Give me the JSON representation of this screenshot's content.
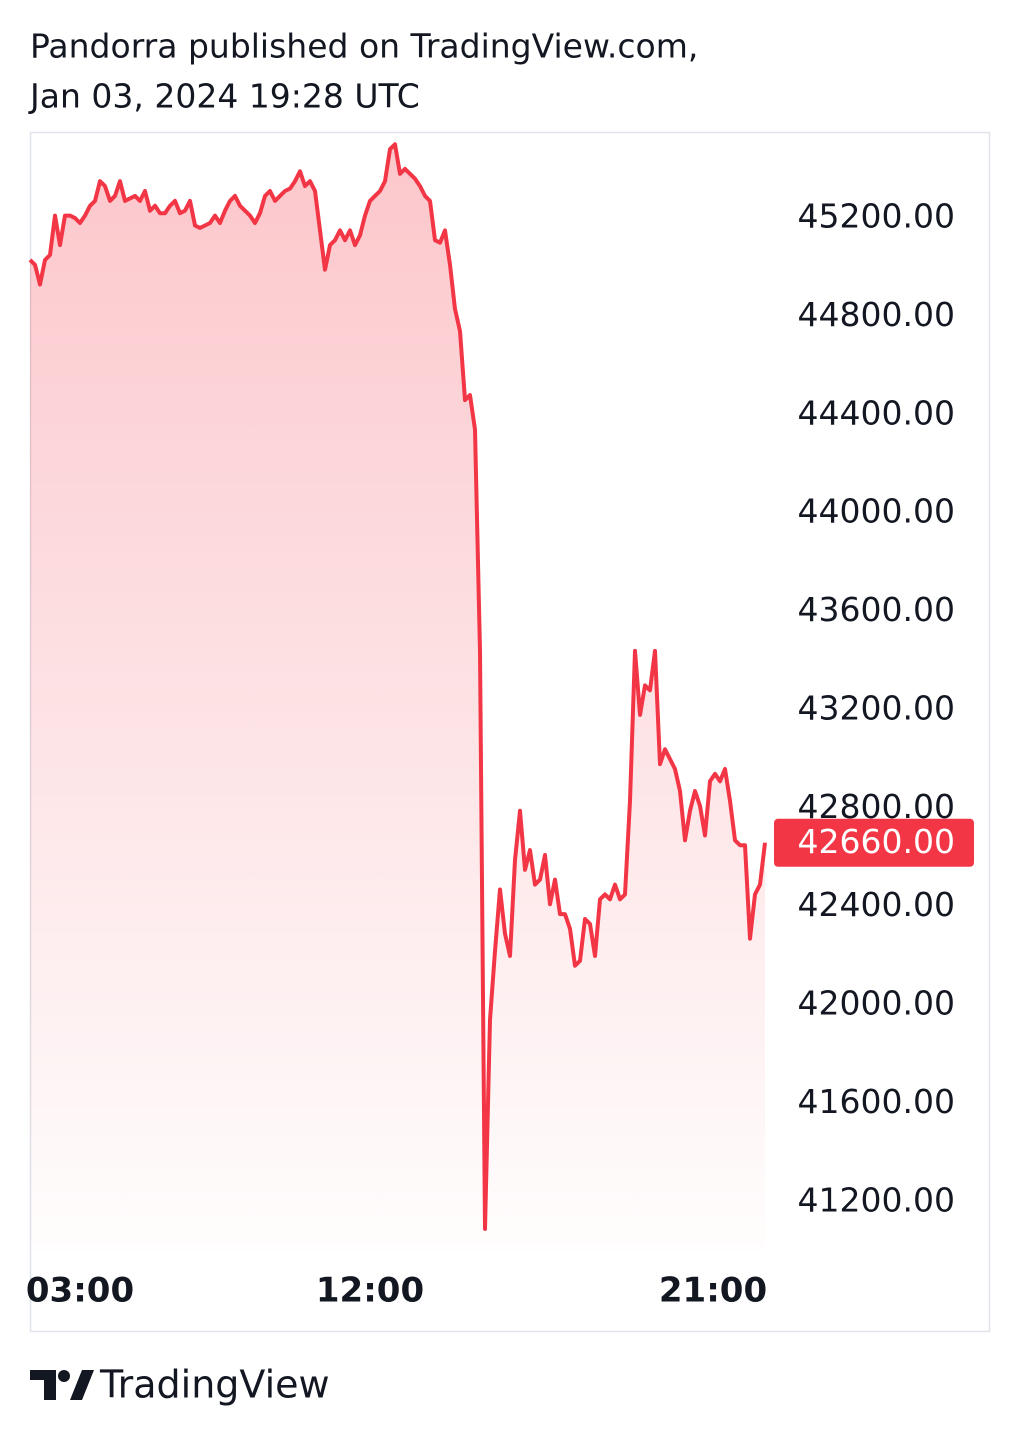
{
  "header": {
    "line1": "Pandorra published on TradingView.com,",
    "line2": "Jan 03, 2024 19:28 UTC"
  },
  "footer": {
    "brand": "TradingView"
  },
  "chart_data": {
    "type": "area",
    "color": "#f23645",
    "values": [
      45030,
      45010,
      44930,
      45030,
      45050,
      45210,
      45090,
      45210,
      45210,
      45200,
      45180,
      45210,
      45250,
      45270,
      45350,
      45330,
      45270,
      45290,
      45350,
      45270,
      45280,
      45290,
      45270,
      45310,
      45230,
      45250,
      45220,
      45220,
      45250,
      45270,
      45220,
      45230,
      45270,
      45170,
      45160,
      45170,
      45180,
      45210,
      45180,
      45230,
      45270,
      45290,
      45250,
      45230,
      45210,
      45180,
      45220,
      45290,
      45310,
      45270,
      45290,
      45310,
      45320,
      45350,
      45390,
      45330,
      45350,
      45310,
      45150,
      44990,
      45090,
      45110,
      45150,
      45110,
      45150,
      45090,
      45130,
      45210,
      45270,
      45290,
      45310,
      45350,
      45480,
      45500,
      45380,
      45400,
      45380,
      45360,
      45330,
      45290,
      45270,
      45110,
      45100,
      45150,
      45010,
      44830,
      44740,
      44460,
      44480,
      44340,
      43440,
      41090,
      41940,
      42220,
      42470,
      42290,
      42200,
      42590,
      42790,
      42550,
      42630,
      42490,
      42510,
      42610,
      42410,
      42510,
      42370,
      42370,
      42310,
      42160,
      42180,
      42350,
      42330,
      42200,
      42430,
      42450,
      42430,
      42490,
      42430,
      42450,
      42830,
      43440,
      43180,
      43300,
      43280,
      43440,
      42980,
      43040,
      43000,
      42960,
      42870,
      42670,
      42790,
      42870,
      42810,
      42690,
      42910,
      42940,
      42910,
      42960,
      42830,
      42670,
      42650,
      42650,
      42270,
      42450,
      42490,
      42660
    ],
    "last_price": {
      "value": 42660,
      "label": "42660.00"
    },
    "ylim": [
      41000,
      45550
    ],
    "yticks": [
      {
        "value": 45200,
        "label": "45200.00"
      },
      {
        "value": 44800,
        "label": "44800.00"
      },
      {
        "value": 44400,
        "label": "44400.00"
      },
      {
        "value": 44000,
        "label": "44000.00"
      },
      {
        "value": 43600,
        "label": "43600.00"
      },
      {
        "value": 43200,
        "label": "43200.00"
      },
      {
        "value": 42800,
        "label": "42800.00"
      },
      {
        "value": 42400,
        "label": "42400.00"
      },
      {
        "value": 42000,
        "label": "42000.00"
      },
      {
        "value": 41600,
        "label": "41600.00"
      },
      {
        "value": 41200,
        "label": "41200.00"
      }
    ],
    "xlim": [
      0,
      147
    ],
    "xticks": [
      {
        "value": 10,
        "label": "03:00"
      },
      {
        "value": 68,
        "label": "12:00"
      },
      {
        "value": 136.6,
        "label": "21:00"
      }
    ],
    "grid": false
  }
}
